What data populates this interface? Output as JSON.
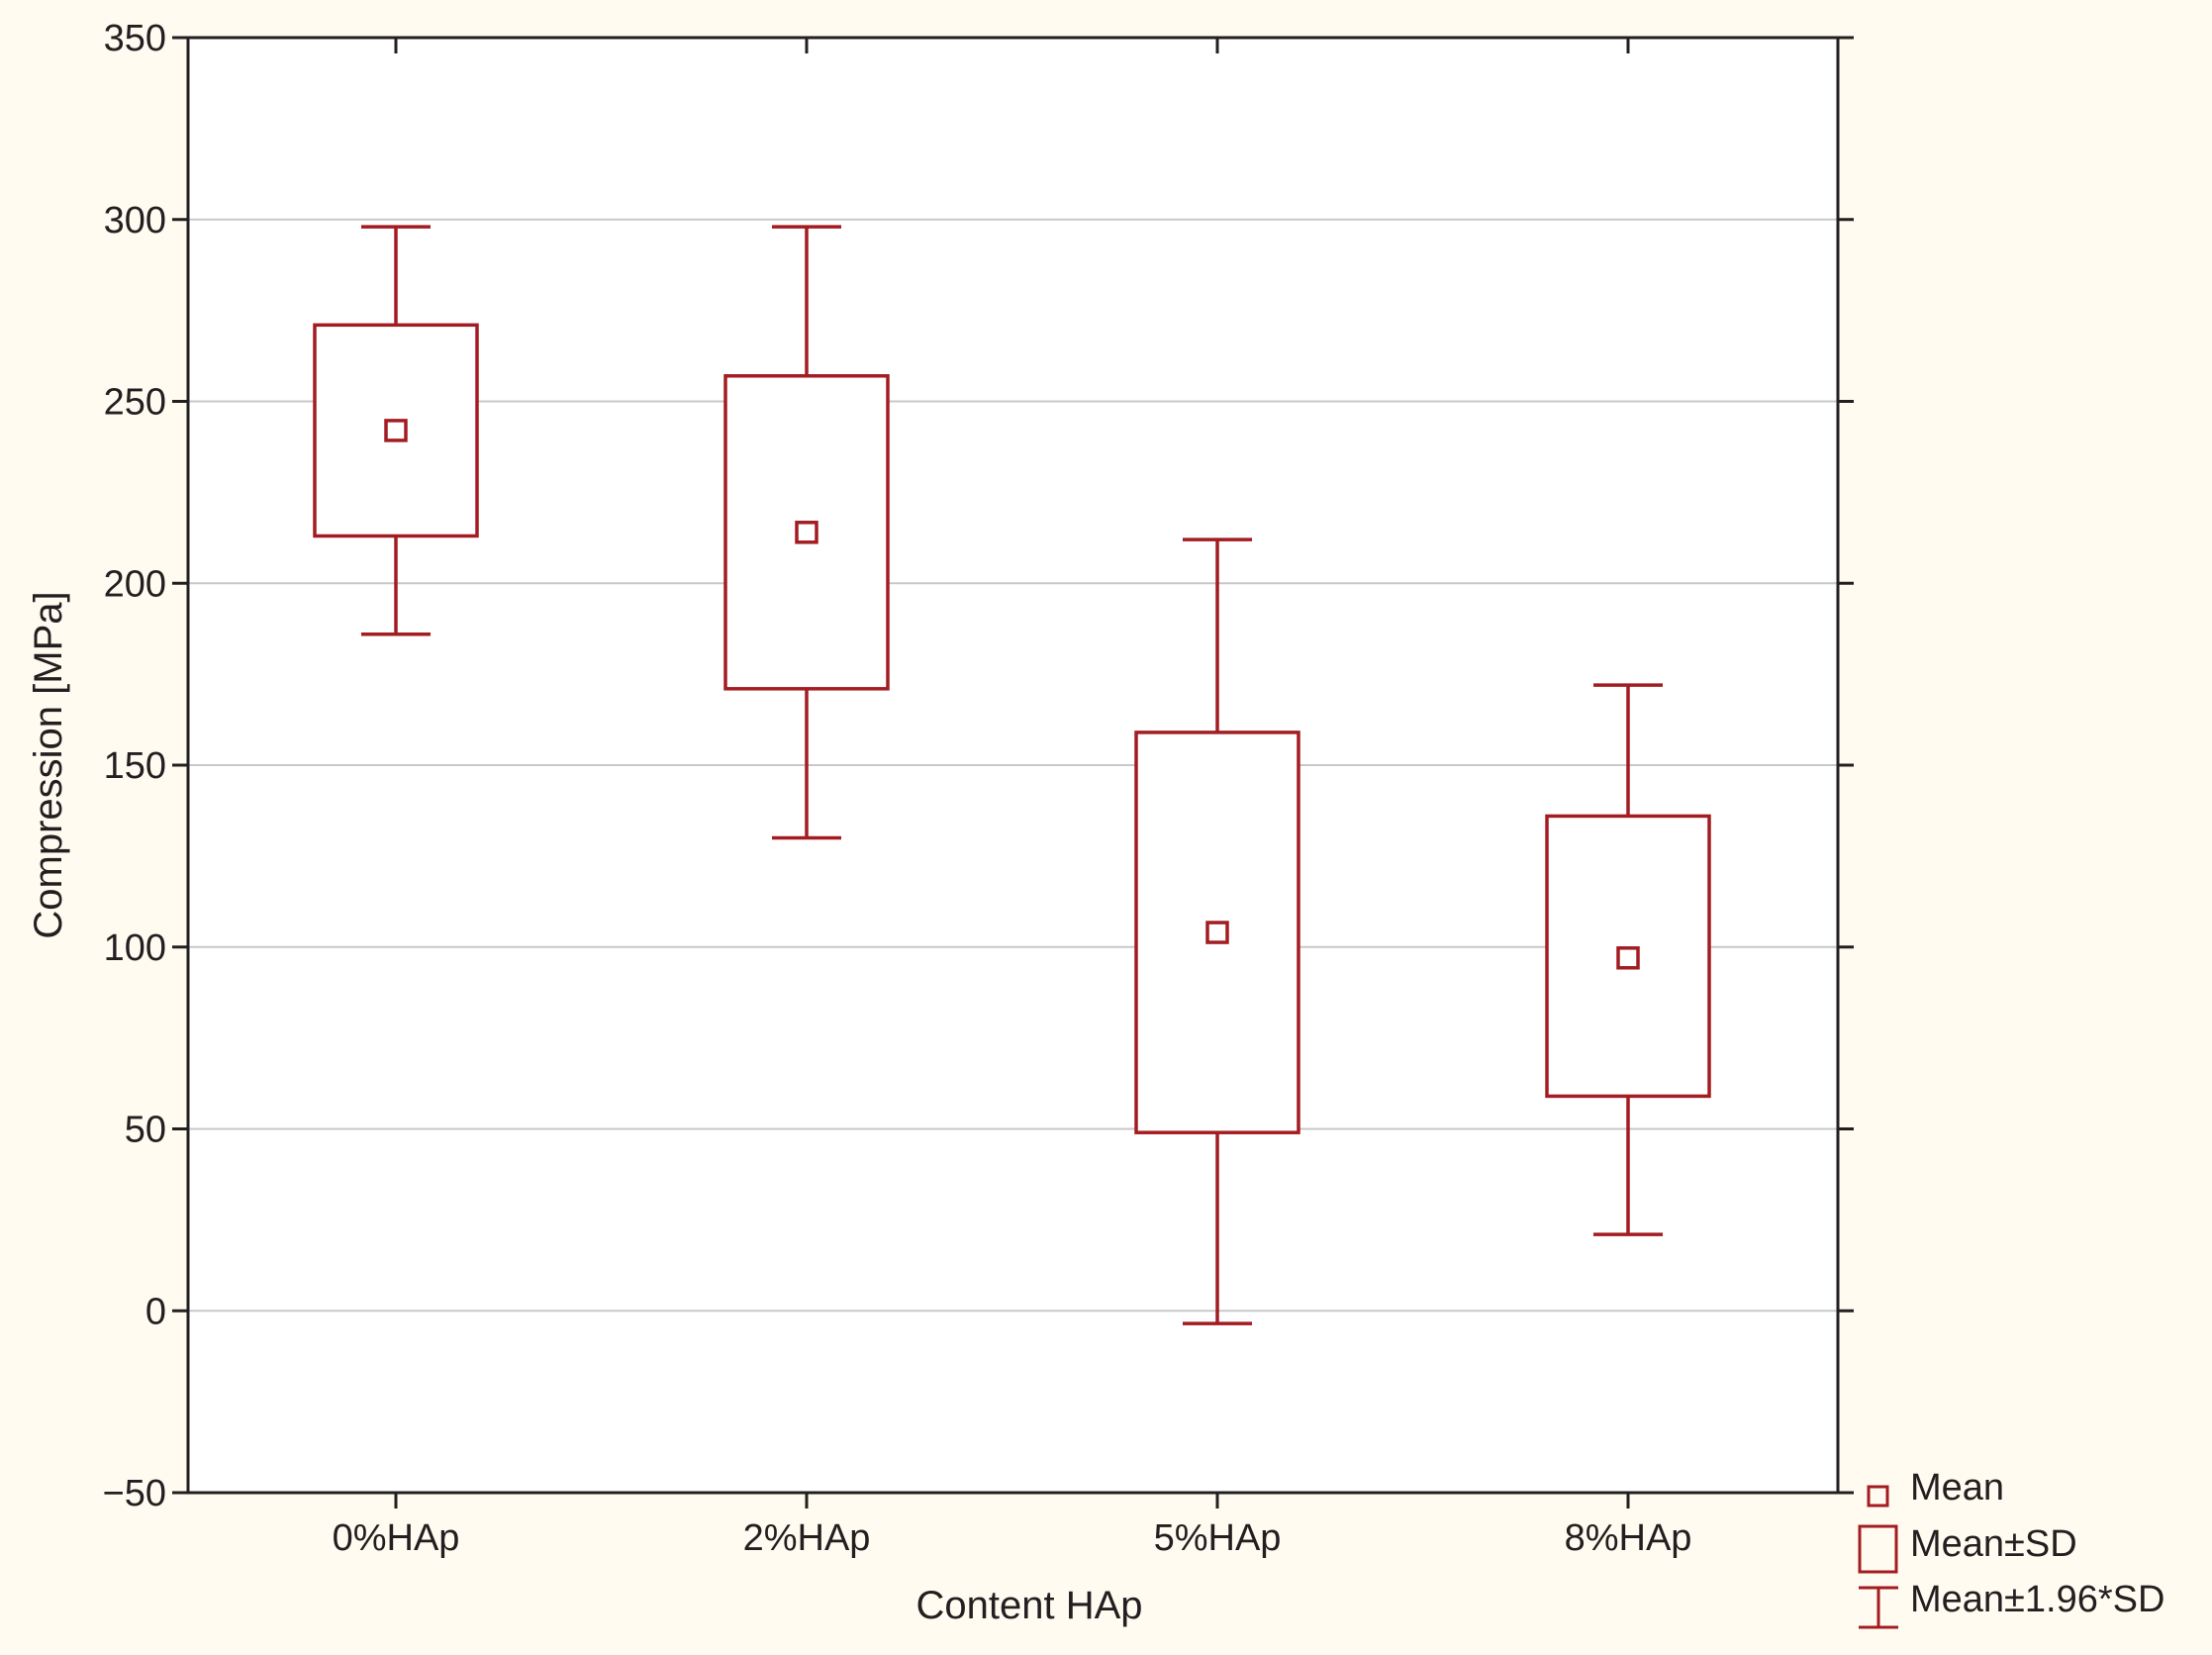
{
  "chart_data": {
    "type": "box",
    "title": "",
    "xlabel": "Content HAp",
    "ylabel": "Compression [MPa]",
    "ylim": [
      -50,
      350
    ],
    "yticks": [
      -50,
      0,
      50,
      100,
      150,
      200,
      250,
      300,
      350
    ],
    "ytick_labels": [
      "−50",
      "0",
      "50",
      "100",
      "150",
      "200",
      "250",
      "300",
      "350"
    ],
    "grid": true,
    "categories": [
      "0%HAp",
      "2%HAp",
      "5%HAp",
      "8%HAp"
    ],
    "series": [
      {
        "name": "0%HAp",
        "mean": 242,
        "sd_low": 213,
        "sd_high": 271,
        "ci_low": 186,
        "ci_high": 298
      },
      {
        "name": "2%HAp",
        "mean": 214,
        "sd_low": 171,
        "sd_high": 257,
        "ci_low": 130,
        "ci_high": 298
      },
      {
        "name": "5%HAp",
        "mean": 104,
        "sd_low": 49,
        "sd_high": 159,
        "ci_low": -3.5,
        "ci_high": 212
      },
      {
        "name": "8%HAp",
        "mean": 97,
        "sd_low": 59,
        "sd_high": 136,
        "ci_low": 21,
        "ci_high": 172
      }
    ],
    "legend": {
      "position": "bottom-right",
      "items": [
        {
          "symbol": "mean",
          "label": "Mean"
        },
        {
          "symbol": "box",
          "label": "Mean±SD"
        },
        {
          "symbol": "whisker",
          "label": "Mean±1.96*SD"
        }
      ]
    },
    "colors": {
      "series": "#a31c22",
      "grid": "#c8c8c8",
      "axis": "#231f20",
      "plot_bg": "#ffffff",
      "page_bg": "#fffbf0"
    }
  }
}
